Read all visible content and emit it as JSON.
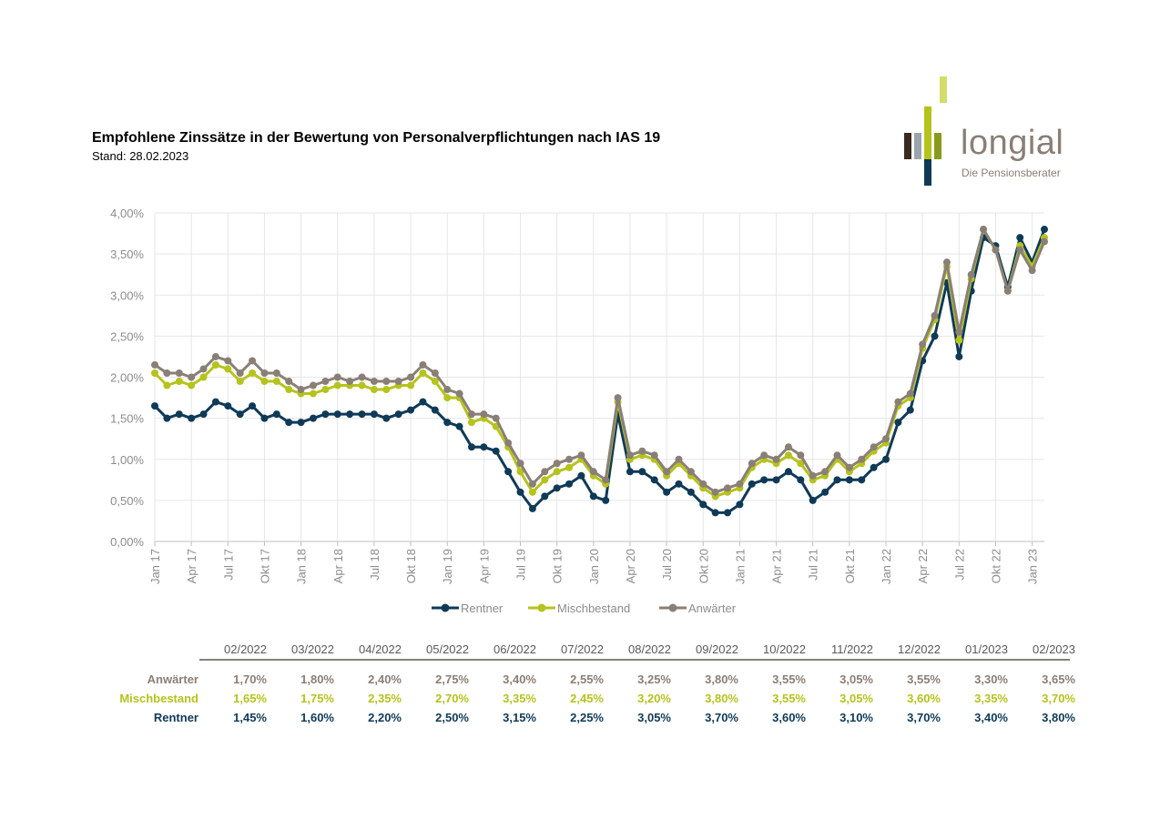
{
  "header": {
    "title": "Empfohlene Zinssätze in der Bewertung von Personalverpflichtungen nach IAS 19",
    "subtitle": "Stand: 28.02.2023"
  },
  "logo": {
    "word": "longial",
    "tagline": "Die Pensionsberater",
    "colors": {
      "dark": "#3a2a1f",
      "grey": "#8a7f76",
      "lime": "#b5c31c",
      "olive": "#8a9a1c",
      "navy": "#0f3a57",
      "lightlime": "#d4dc6a"
    }
  },
  "chart_data": {
    "type": "line",
    "y_tick_labels": [
      "0,00%",
      "0,50%",
      "1,00%",
      "1,50%",
      "2,00%",
      "2,50%",
      "3,00%",
      "3,50%",
      "4,00%"
    ],
    "ylim": [
      0,
      4
    ],
    "x_tick_labels": [
      "Jan 17",
      "Apr 17",
      "Jul 17",
      "Okt 17",
      "Jan 18",
      "Apr 18",
      "Jul 18",
      "Okt 18",
      "Jan 19",
      "Apr 19",
      "Jul 19",
      "Okt 19",
      "Jan 20",
      "Apr 20",
      "Jul 20",
      "Okt 20",
      "Jan 21",
      "Apr 21",
      "Jul 21",
      "Okt 21",
      "Jan 22",
      "Apr 22",
      "Jul 22",
      "Okt 22",
      "Jan 23"
    ],
    "x_tick_every": 3,
    "x": [
      "01/2017",
      "02/2017",
      "03/2017",
      "04/2017",
      "05/2017",
      "06/2017",
      "07/2017",
      "08/2017",
      "09/2017",
      "10/2017",
      "11/2017",
      "12/2017",
      "01/2018",
      "02/2018",
      "03/2018",
      "04/2018",
      "05/2018",
      "06/2018",
      "07/2018",
      "08/2018",
      "09/2018",
      "10/2018",
      "11/2018",
      "12/2018",
      "01/2019",
      "02/2019",
      "03/2019",
      "04/2019",
      "05/2019",
      "06/2019",
      "07/2019",
      "08/2019",
      "09/2019",
      "10/2019",
      "11/2019",
      "12/2019",
      "01/2020",
      "02/2020",
      "03/2020",
      "04/2020",
      "05/2020",
      "06/2020",
      "07/2020",
      "08/2020",
      "09/2020",
      "10/2020",
      "11/2020",
      "12/2020",
      "01/2021",
      "02/2021",
      "03/2021",
      "04/2021",
      "05/2021",
      "06/2021",
      "07/2021",
      "08/2021",
      "09/2021",
      "10/2021",
      "11/2021",
      "12/2021",
      "01/2022",
      "02/2022",
      "03/2022",
      "04/2022",
      "05/2022",
      "06/2022",
      "07/2022",
      "08/2022",
      "09/2022",
      "10/2022",
      "11/2022",
      "12/2022",
      "01/2023",
      "02/2023"
    ],
    "grid": true,
    "legend_position": "bottom",
    "series": [
      {
        "name": "Rentner",
        "color": "#0f3a57",
        "values": [
          1.65,
          1.5,
          1.55,
          1.5,
          1.55,
          1.7,
          1.65,
          1.55,
          1.65,
          1.5,
          1.55,
          1.45,
          1.45,
          1.5,
          1.55,
          1.55,
          1.55,
          1.55,
          1.55,
          1.5,
          1.55,
          1.6,
          1.7,
          1.6,
          1.45,
          1.4,
          1.15,
          1.15,
          1.1,
          0.85,
          0.6,
          0.4,
          0.55,
          0.65,
          0.7,
          0.8,
          0.55,
          0.5,
          1.55,
          0.85,
          0.85,
          0.75,
          0.6,
          0.7,
          0.6,
          0.45,
          0.35,
          0.35,
          0.45,
          0.7,
          0.75,
          0.75,
          0.85,
          0.75,
          0.5,
          0.6,
          0.75,
          0.75,
          0.75,
          0.9,
          1.0,
          1.45,
          1.6,
          2.2,
          2.5,
          3.15,
          2.25,
          3.05,
          3.7,
          3.6,
          3.1,
          3.7,
          3.4,
          3.8
        ]
      },
      {
        "name": "Mischbestand",
        "color": "#b5c31c",
        "values": [
          2.05,
          1.9,
          1.95,
          1.9,
          2.0,
          2.15,
          2.1,
          1.95,
          2.05,
          1.95,
          1.95,
          1.85,
          1.8,
          1.8,
          1.85,
          1.9,
          1.9,
          1.9,
          1.85,
          1.85,
          1.9,
          1.9,
          2.05,
          1.95,
          1.75,
          1.75,
          1.45,
          1.5,
          1.4,
          1.15,
          0.85,
          0.6,
          0.75,
          0.85,
          0.9,
          1.0,
          0.8,
          0.7,
          1.7,
          1.0,
          1.05,
          1.0,
          0.8,
          0.95,
          0.8,
          0.65,
          0.55,
          0.6,
          0.65,
          0.9,
          1.0,
          0.95,
          1.05,
          0.95,
          0.75,
          0.8,
          1.0,
          0.85,
          0.95,
          1.1,
          1.2,
          1.65,
          1.75,
          2.35,
          2.7,
          3.35,
          2.45,
          3.2,
          3.8,
          3.55,
          3.05,
          3.6,
          3.35,
          3.7
        ]
      },
      {
        "name": "Anwärter",
        "color": "#8a7f76",
        "values": [
          2.15,
          2.05,
          2.05,
          2.0,
          2.1,
          2.25,
          2.2,
          2.05,
          2.2,
          2.05,
          2.05,
          1.95,
          1.85,
          1.9,
          1.95,
          2.0,
          1.95,
          2.0,
          1.95,
          1.95,
          1.95,
          2.0,
          2.15,
          2.05,
          1.85,
          1.8,
          1.55,
          1.55,
          1.5,
          1.2,
          0.95,
          0.7,
          0.85,
          0.95,
          1.0,
          1.05,
          0.85,
          0.75,
          1.75,
          1.05,
          1.1,
          1.05,
          0.85,
          1.0,
          0.85,
          0.7,
          0.6,
          0.65,
          0.7,
          0.95,
          1.05,
          1.0,
          1.15,
          1.05,
          0.8,
          0.85,
          1.05,
          0.9,
          1.0,
          1.15,
          1.25,
          1.7,
          1.8,
          2.4,
          2.75,
          3.4,
          2.55,
          3.25,
          3.8,
          3.55,
          3.05,
          3.55,
          3.3,
          3.65
        ]
      }
    ]
  },
  "table": {
    "columns": [
      "02/2022",
      "03/2022",
      "04/2022",
      "05/2022",
      "06/2022",
      "07/2022",
      "08/2022",
      "09/2022",
      "10/2022",
      "11/2022",
      "12/2022",
      "01/2023",
      "02/2023"
    ],
    "rows": [
      {
        "label": "Anwärter",
        "color": "#8a7f76",
        "values": [
          "1,70%",
          "1,80%",
          "2,40%",
          "2,75%",
          "3,40%",
          "2,55%",
          "3,25%",
          "3,80%",
          "3,55%",
          "3,05%",
          "3,55%",
          "3,30%",
          "3,65%"
        ]
      },
      {
        "label": "Mischbestand",
        "color": "#b5c31c",
        "values": [
          "1,65%",
          "1,75%",
          "2,35%",
          "2,70%",
          "3,35%",
          "2,45%",
          "3,20%",
          "3,80%",
          "3,55%",
          "3,05%",
          "3,60%",
          "3,35%",
          "3,70%"
        ]
      },
      {
        "label": "Rentner",
        "color": "#0f3a57",
        "values": [
          "1,45%",
          "1,60%",
          "2,20%",
          "2,50%",
          "3,15%",
          "2,25%",
          "3,05%",
          "3,70%",
          "3,60%",
          "3,10%",
          "3,70%",
          "3,40%",
          "3,80%"
        ]
      }
    ]
  }
}
